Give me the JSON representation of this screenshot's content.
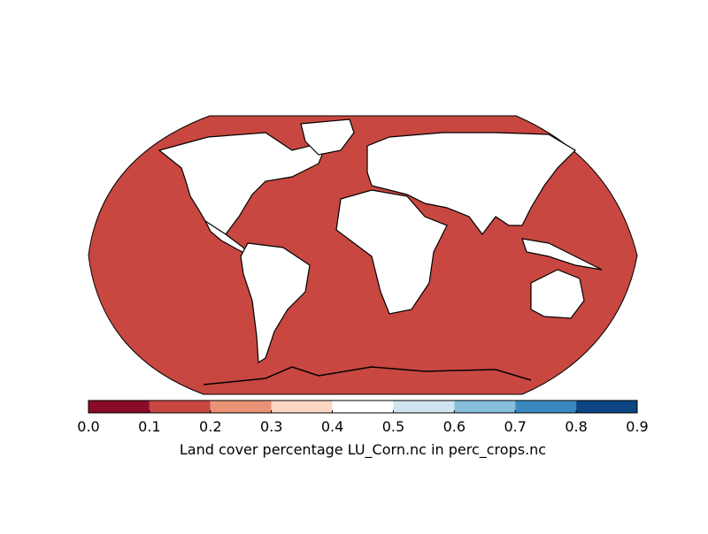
{
  "colorbar": {
    "label": "Land cover percentage LU_Corn.nc in perc_crops.nc",
    "lim": [
      0,
      0.9
    ],
    "ticks": [
      {
        "value": 0,
        "label": "0.0"
      },
      {
        "value": 0.1,
        "label": "0.1"
      },
      {
        "value": 0.2,
        "label": "0.2"
      },
      {
        "value": 0.3,
        "label": "0.3"
      },
      {
        "value": 0.4,
        "label": "0.4"
      },
      {
        "value": 0.5,
        "label": "0.5"
      },
      {
        "value": 0.6,
        "label": "0.6"
      },
      {
        "value": 0.7,
        "label": "0.7"
      },
      {
        "value": 0.8,
        "label": "0.8"
      },
      {
        "value": 0.9,
        "label": "0.9"
      }
    ],
    "colors": [
      "#8b0a28",
      "#c94741",
      "#ea9376",
      "#fcd8c4",
      "#ffffff",
      "#d1e5f0",
      "#87bedc",
      "#3a88bf",
      "#0b4583"
    ]
  }
}
